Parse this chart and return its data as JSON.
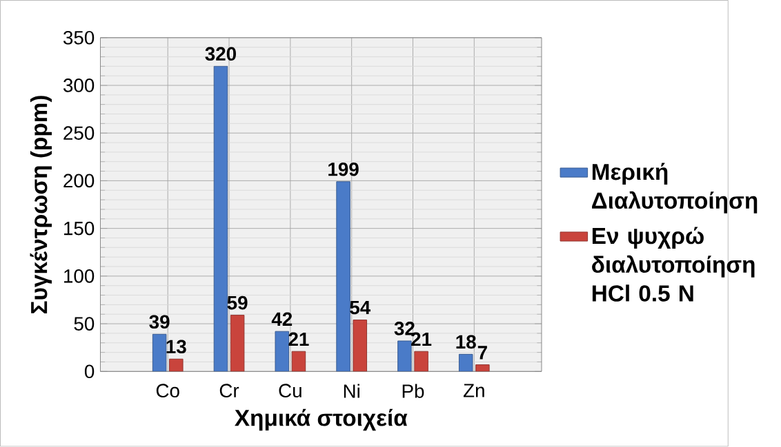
{
  "chart_data": {
    "type": "bar",
    "xlabel": "Χημικά στοιχεία",
    "ylabel": "Συγκέντρωση (ppm)",
    "categories": [
      "Co",
      "Cr",
      "Cu",
      "Ni",
      "Pb",
      "Zn"
    ],
    "series": [
      {
        "name": "Μερική Διαλυτοποίηση",
        "color": "#4a7bc8",
        "values": [
          39,
          320,
          42,
          199,
          32,
          18
        ]
      },
      {
        "name": "Εν ψυχρώ διαλυτοποίηση HCl 0.5 N",
        "color": "#c9443c",
        "values": [
          13,
          59,
          21,
          54,
          21,
          7
        ]
      }
    ],
    "ylim": [
      0,
      350
    ],
    "yticks": [
      0,
      50,
      100,
      150,
      200,
      250,
      300,
      350
    ],
    "grid": true,
    "legend": "right",
    "data_labels": true
  }
}
